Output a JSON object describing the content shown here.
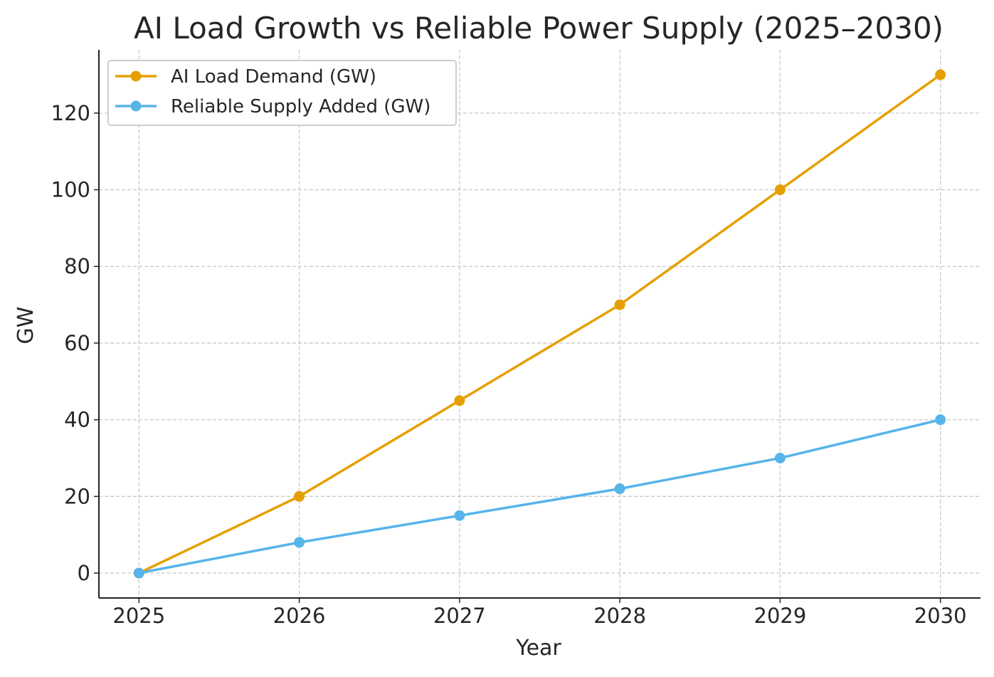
{
  "chart_data": {
    "type": "line",
    "title": "AI Load Growth vs Reliable Power Supply (2025–2030)",
    "xlabel": "Year",
    "ylabel": "GW",
    "x": [
      2025,
      2026,
      2027,
      2028,
      2029,
      2030
    ],
    "x_tick_labels": [
      "2025",
      "2026",
      "2027",
      "2028",
      "2029",
      "2030"
    ],
    "y_ticks": [
      0,
      20,
      40,
      60,
      80,
      100,
      120
    ],
    "y_tick_labels": [
      "0",
      "20",
      "40",
      "60",
      "80",
      "100",
      "120"
    ],
    "xlim": [
      2024.75,
      2030.25
    ],
    "ylim": [
      -6.5,
      136.5
    ],
    "grid": true,
    "legend_position": "upper-left",
    "series": [
      {
        "name": "AI Load Demand (GW)",
        "color": "#E69F00",
        "values": [
          0,
          20,
          45,
          70,
          100,
          130
        ]
      },
      {
        "name": "Reliable Supply Added (GW)",
        "color": "#56B4E9",
        "values": [
          0,
          8,
          15,
          22,
          30,
          40
        ]
      }
    ]
  }
}
